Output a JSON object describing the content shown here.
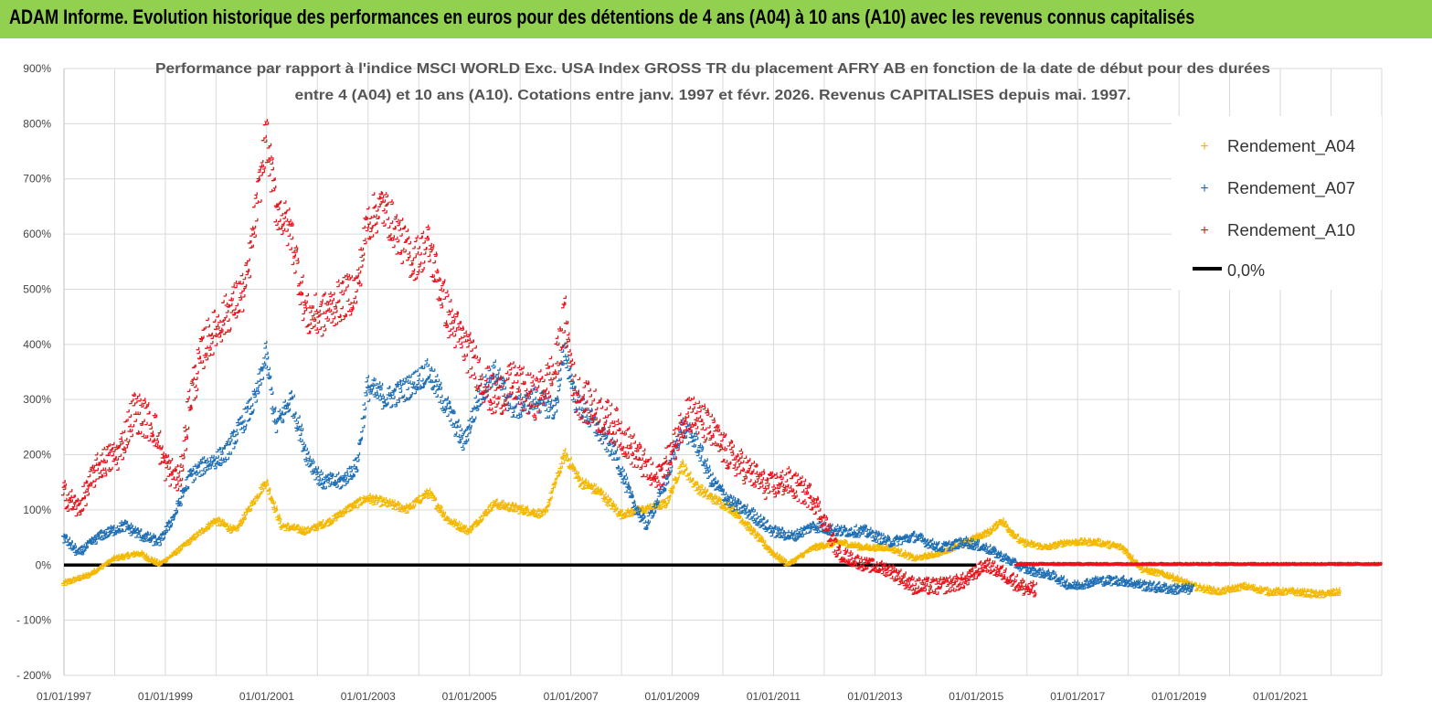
{
  "banner": {
    "title": "ADAM Informe. Evolution historique des performances en euros pour des détentions de 4 ans (A04) à 10 ans (A10) avec les revenus connus capitalisés"
  },
  "colors": {
    "banner_bg": "#92d050",
    "a04": "#f5b800",
    "a07": "#1f6fb5",
    "a10": "#e8141c",
    "zero": "#000000"
  },
  "chart_data": {
    "type": "scatter",
    "title_line1": "Performance par rapport à l'indice MSCI WORLD Exc. USA Index GROSS TR  du placement AFRY AB en fonction de la date de début pour des durées",
    "title_line2": "entre 4 (A04) et 10 ans (A10). Cotations entre janv. 1997 et févr. 2026. Revenus CAPITALISES depuis mai. 1997.",
    "x_tick_labels": [
      "01/01/1997",
      "01/01/1999",
      "01/01/2001",
      "01/01/2003",
      "01/01/2005",
      "01/01/2007",
      "01/01/2009",
      "01/01/2011",
      "01/01/2013",
      "01/01/2015",
      "01/01/2017",
      "01/01/2019",
      "01/01/2021"
    ],
    "y_tick_labels": [
      "900%",
      "800%",
      "700%",
      "600%",
      "500%",
      "400%",
      "300%",
      "200%",
      "100%",
      "0%",
      "- 100%",
      "- 200%"
    ],
    "xlim": [
      1997.0,
      2023.0
    ],
    "ylim": [
      -200,
      900
    ],
    "legend": [
      {
        "name": "Rendement_A04",
        "symbol": "+"
      },
      {
        "name": "Rendement_A07",
        "symbol": "+"
      },
      {
        "name": "Rendement_A10",
        "symbol": "+"
      },
      {
        "name": "0,0%",
        "symbol": "line"
      }
    ],
    "series": [
      {
        "name": "Rendement_A04",
        "key": "a04",
        "x_end": 2022.2,
        "points": [
          [
            1997.0,
            -35
          ],
          [
            1997.5,
            -20
          ],
          [
            1998.0,
            10
          ],
          [
            1998.5,
            20
          ],
          [
            1998.9,
            0
          ],
          [
            1999.2,
            20
          ],
          [
            1999.6,
            50
          ],
          [
            2000.0,
            80
          ],
          [
            2000.4,
            60
          ],
          [
            2000.8,
            120
          ],
          [
            2001.0,
            150
          ],
          [
            2001.3,
            70
          ],
          [
            2001.8,
            60
          ],
          [
            2002.3,
            80
          ],
          [
            2002.6,
            100
          ],
          [
            2003.0,
            120
          ],
          [
            2003.4,
            110
          ],
          [
            2003.8,
            100
          ],
          [
            2004.2,
            130
          ],
          [
            2004.6,
            80
          ],
          [
            2005.0,
            60
          ],
          [
            2005.5,
            110
          ],
          [
            2006.0,
            100
          ],
          [
            2006.5,
            90
          ],
          [
            2006.9,
            200
          ],
          [
            2007.2,
            150
          ],
          [
            2007.6,
            130
          ],
          [
            2008.0,
            90
          ],
          [
            2008.5,
            100
          ],
          [
            2008.9,
            110
          ],
          [
            2009.2,
            180
          ],
          [
            2009.5,
            140
          ],
          [
            2009.8,
            120
          ],
          [
            2010.2,
            100
          ],
          [
            2010.6,
            60
          ],
          [
            2011.0,
            20
          ],
          [
            2011.3,
            0
          ],
          [
            2011.8,
            30
          ],
          [
            2012.3,
            40
          ],
          [
            2012.8,
            30
          ],
          [
            2013.3,
            30
          ],
          [
            2013.8,
            10
          ],
          [
            2014.3,
            20
          ],
          [
            2014.8,
            40
          ],
          [
            2015.3,
            60
          ],
          [
            2015.5,
            80
          ],
          [
            2015.9,
            40
          ],
          [
            2016.4,
            30
          ],
          [
            2016.8,
            40
          ],
          [
            2017.4,
            40
          ],
          [
            2017.9,
            30
          ],
          [
            2018.3,
            -10
          ],
          [
            2018.8,
            -20
          ],
          [
            2019.3,
            -40
          ],
          [
            2019.8,
            -50
          ],
          [
            2020.3,
            -40
          ],
          [
            2020.8,
            -50
          ],
          [
            2021.3,
            -50
          ],
          [
            2021.8,
            -55
          ],
          [
            2022.2,
            -50
          ]
        ]
      },
      {
        "name": "Rendement_A07",
        "key": "a07",
        "x_end": 2019.3,
        "points": [
          [
            1997.0,
            50
          ],
          [
            1997.3,
            20
          ],
          [
            1997.7,
            50
          ],
          [
            1998.2,
            70
          ],
          [
            1998.6,
            50
          ],
          [
            1998.9,
            40
          ],
          [
            1999.2,
            90
          ],
          [
            1999.5,
            160
          ],
          [
            1999.8,
            180
          ],
          [
            2000.2,
            200
          ],
          [
            2000.5,
            250
          ],
          [
            2000.8,
            300
          ],
          [
            2001.0,
            380
          ],
          [
            2001.2,
            250
          ],
          [
            2001.5,
            300
          ],
          [
            2001.8,
            200
          ],
          [
            2002.1,
            150
          ],
          [
            2002.5,
            150
          ],
          [
            2002.8,
            180
          ],
          [
            2003.0,
            320
          ],
          [
            2003.4,
            300
          ],
          [
            2003.8,
            320
          ],
          [
            2004.2,
            350
          ],
          [
            2004.6,
            280
          ],
          [
            2004.9,
            220
          ],
          [
            2005.2,
            300
          ],
          [
            2005.5,
            350
          ],
          [
            2005.9,
            280
          ],
          [
            2006.3,
            300
          ],
          [
            2006.7,
            280
          ],
          [
            2006.9,
            390
          ],
          [
            2007.1,
            300
          ],
          [
            2007.5,
            250
          ],
          [
            2007.9,
            200
          ],
          [
            2008.2,
            120
          ],
          [
            2008.5,
            70
          ],
          [
            2008.9,
            150
          ],
          [
            2009.2,
            250
          ],
          [
            2009.5,
            220
          ],
          [
            2009.8,
            150
          ],
          [
            2010.2,
            110
          ],
          [
            2010.6,
            90
          ],
          [
            2011.0,
            60
          ],
          [
            2011.4,
            50
          ],
          [
            2011.8,
            70
          ],
          [
            2012.3,
            60
          ],
          [
            2012.8,
            60
          ],
          [
            2013.3,
            40
          ],
          [
            2013.8,
            50
          ],
          [
            2014.3,
            30
          ],
          [
            2014.8,
            40
          ],
          [
            2015.2,
            30
          ],
          [
            2015.6,
            10
          ],
          [
            2016.0,
            -10
          ],
          [
            2016.5,
            -20
          ],
          [
            2016.9,
            -40
          ],
          [
            2017.4,
            -30
          ],
          [
            2017.9,
            -30
          ],
          [
            2018.4,
            -40
          ],
          [
            2018.9,
            -45
          ],
          [
            2019.3,
            -45
          ]
        ]
      },
      {
        "name": "Rendement_A10",
        "key": "a10",
        "x_end": 2016.2,
        "points": [
          [
            1997.0,
            130
          ],
          [
            1997.3,
            100
          ],
          [
            1997.7,
            180
          ],
          [
            1998.1,
            200
          ],
          [
            1998.4,
            280
          ],
          [
            1998.8,
            250
          ],
          [
            1999.0,
            180
          ],
          [
            1999.3,
            150
          ],
          [
            1999.5,
            300
          ],
          [
            1999.8,
            400
          ],
          [
            2000.2,
            450
          ],
          [
            2000.6,
            500
          ],
          [
            2000.9,
            700
          ],
          [
            2001.0,
            780
          ],
          [
            2001.2,
            650
          ],
          [
            2001.5,
            600
          ],
          [
            2001.8,
            450
          ],
          [
            2002.1,
            450
          ],
          [
            2002.5,
            480
          ],
          [
            2002.8,
            500
          ],
          [
            2003.0,
            620
          ],
          [
            2003.3,
            650
          ],
          [
            2003.6,
            600
          ],
          [
            2003.9,
            550
          ],
          [
            2004.2,
            580
          ],
          [
            2004.6,
            450
          ],
          [
            2004.9,
            400
          ],
          [
            2005.2,
            350
          ],
          [
            2005.5,
            300
          ],
          [
            2005.9,
            330
          ],
          [
            2006.3,
            300
          ],
          [
            2006.7,
            350
          ],
          [
            2006.9,
            450
          ],
          [
            2007.1,
            310
          ],
          [
            2007.5,
            280
          ],
          [
            2007.9,
            250
          ],
          [
            2008.3,
            200
          ],
          [
            2008.7,
            150
          ],
          [
            2009.0,
            200
          ],
          [
            2009.3,
            280
          ],
          [
            2009.7,
            250
          ],
          [
            2010.1,
            200
          ],
          [
            2010.5,
            170
          ],
          [
            2010.9,
            140
          ],
          [
            2011.3,
            150
          ],
          [
            2011.8,
            120
          ],
          [
            2012.3,
            20
          ],
          [
            2012.8,
            0
          ],
          [
            2013.3,
            -10
          ],
          [
            2013.8,
            -40
          ],
          [
            2014.3,
            -40
          ],
          [
            2014.8,
            -30
          ],
          [
            2015.2,
            0
          ],
          [
            2015.6,
            -20
          ],
          [
            2015.9,
            -40
          ],
          [
            2016.2,
            -50
          ]
        ]
      },
      {
        "name": "0,0%",
        "key": "zero",
        "type": "line",
        "x_start": 1997.0,
        "x_end": 2015.0,
        "value": 0
      }
    ],
    "a10_zero_tail": {
      "x_start": 2015.8,
      "x_end": 2023.0,
      "value": 0
    }
  }
}
